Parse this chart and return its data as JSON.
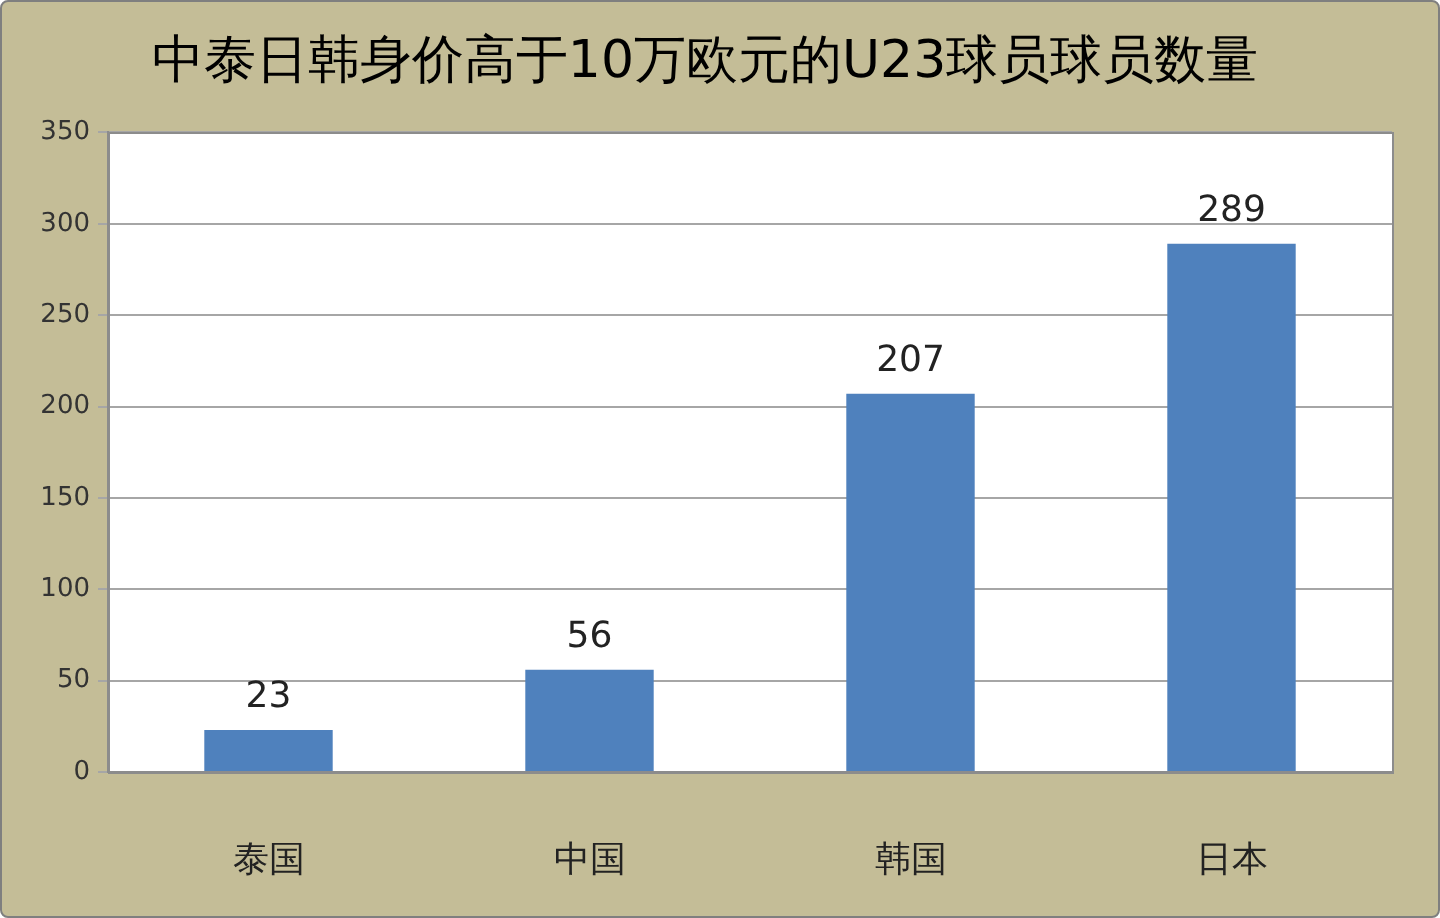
{
  "chart_data": {
    "type": "bar",
    "title": "中泰日韩身价高于10万欧元的U23球员球员数量",
    "categories": [
      "泰国",
      "中国",
      "韩国",
      "日本"
    ],
    "values": [
      23,
      56,
      207,
      289
    ],
    "color": "#4f81bd",
    "ylim": [
      0,
      350
    ],
    "yticks": [
      0,
      50,
      100,
      150,
      200,
      250,
      300,
      350
    ],
    "grid": "y",
    "data_labels": true
  }
}
